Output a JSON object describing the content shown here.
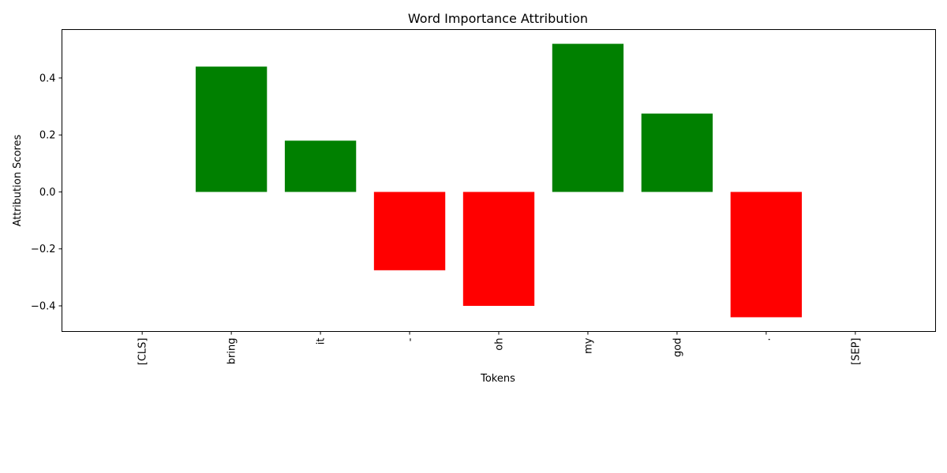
{
  "chart_data": {
    "type": "bar",
    "title": "Word Importance Attribution",
    "xlabel": "Tokens",
    "ylabel": "Attribution Scores",
    "categories": [
      "[CLS]",
      "bring",
      "it",
      "-",
      "oh",
      "my",
      "god",
      ".",
      "[SEP]"
    ],
    "values": [
      0.0,
      0.44,
      0.18,
      -0.275,
      -0.4,
      0.52,
      0.275,
      -0.44,
      0.0
    ],
    "ylim": [
      -0.49,
      0.57
    ],
    "yticks": [
      -0.4,
      -0.2,
      0.0,
      0.2,
      0.4
    ],
    "ytick_labels": [
      "−0.4",
      "−0.2",
      "0.0",
      "0.2",
      "0.4"
    ],
    "grid": false,
    "colors": {
      "positive": "#008000",
      "negative": "#ff0000"
    }
  }
}
